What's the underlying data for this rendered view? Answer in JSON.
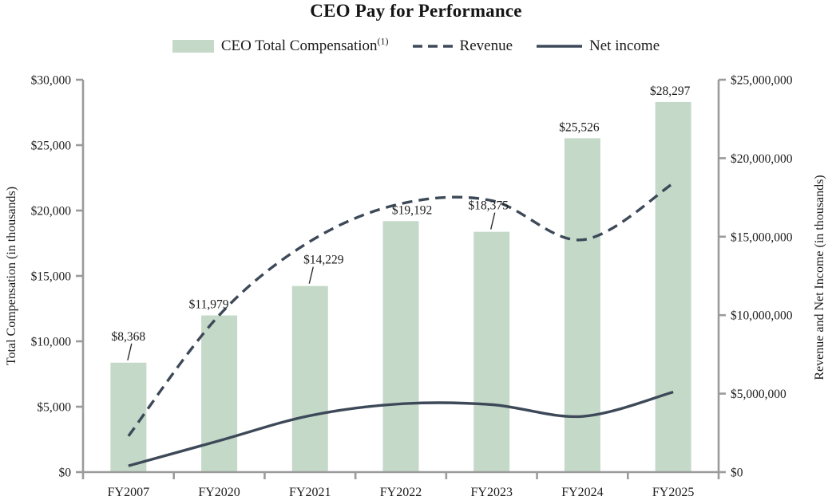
{
  "title": "CEO Pay for Performance",
  "legend": {
    "bar_label": "CEO Total Compensation",
    "bar_superscript": "(1)",
    "revenue_label": "Revenue",
    "net_income_label": "Net income"
  },
  "axes": {
    "left_title": "Total Compensation (in thousands)",
    "right_title": "Revenue and Net Income (in thousands)",
    "left_tick_labels": [
      "$0",
      "$5,000",
      "$10,000",
      "$15,000",
      "$20,000",
      "$25,000",
      "$30,000"
    ],
    "right_tick_labels": [
      "$0",
      "$5,000,000",
      "$10,000,000",
      "$15,000,000",
      "$20,000,000",
      "$25,000,000"
    ]
  },
  "colors": {
    "bar": "#c5d9c9",
    "line": "#3d4958",
    "axis": "#9b9b9b",
    "text": "#1b1b1b",
    "leader": "#2a2a2a"
  },
  "chart_data": {
    "type": "bar",
    "subtype": "combo-bar-line-dual-axis",
    "title": "CEO Pay for Performance",
    "categories": [
      "FY2007",
      "FY2020",
      "FY2021",
      "FY2022",
      "FY2023",
      "FY2024",
      "FY2025"
    ],
    "bar_series": {
      "name": "CEO Total Compensation (1)",
      "axis": "left",
      "values": [
        8368,
        11979,
        14229,
        19192,
        18375,
        25526,
        28297
      ],
      "labels": [
        "$8,368",
        "$11,979",
        "$14,229",
        "$19,192",
        "$18,375",
        "$25,526",
        "$28,297"
      ],
      "label_leader": [
        true,
        false,
        true,
        false,
        true,
        false,
        false
      ],
      "label_dx": [
        0,
        -13,
        17,
        14,
        -4,
        -4,
        -4
      ]
    },
    "line_series": [
      {
        "name": "Revenue",
        "style": "dashed",
        "axis": "right",
        "values": [
          2300000,
          10000000,
          14700000,
          17100000,
          17300000,
          14800000,
          18400000
        ]
      },
      {
        "name": "Net income",
        "style": "solid",
        "axis": "right",
        "values": [
          400000,
          2000000,
          3600000,
          4350000,
          4300000,
          3550000,
          5100000
        ]
      }
    ],
    "left_ylabel": "Total Compensation (in thousands)",
    "right_ylabel": "Revenue and Net Income (in thousands)",
    "left_ylim": [
      0,
      30000
    ],
    "right_ylim": [
      0,
      25000000
    ],
    "left_tick_values": [
      0,
      5000,
      10000,
      15000,
      20000,
      25000,
      30000
    ],
    "right_tick_values": [
      0,
      5000000,
      10000000,
      15000000,
      20000000,
      25000000
    ],
    "grid": false,
    "legend_position": "top"
  }
}
